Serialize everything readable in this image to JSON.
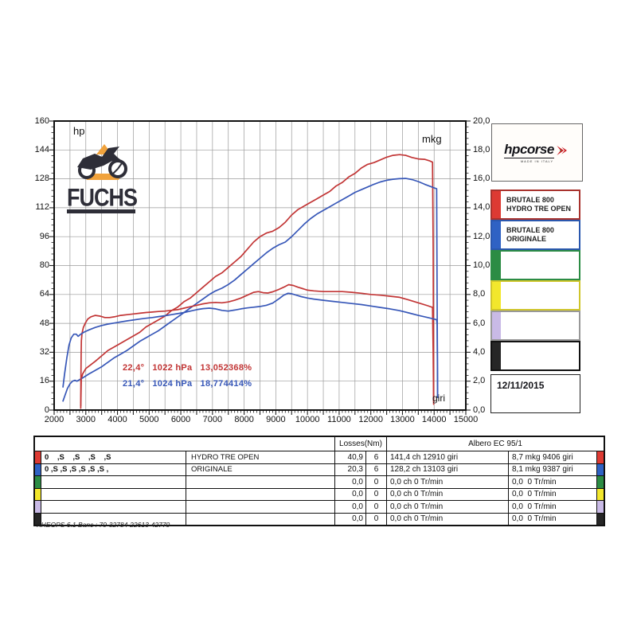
{
  "page": {
    "footer": "KHEOPS 6.1  Banc : 70-32784-22613-42770"
  },
  "logos": {
    "fuchs": {
      "text": "FUCHS"
    },
    "hpcorse": {
      "text": "hpcorse",
      "subtext": "MADE IN ITALY"
    }
  },
  "right_panel": {
    "date": "12/11/2015",
    "legend": [
      {
        "line1": "BRUTALE 800",
        "line2": "HYDRO TRE OPEN",
        "color": "#dd3a33",
        "border": "#a8322d"
      },
      {
        "line1": "BRUTALE 800",
        "line2": "ORIGINALE",
        "color": "#2f62c4",
        "border": "#2a57ae"
      },
      {
        "line1": "",
        "line2": "",
        "color": "#2c8c44",
        "border": "#2c8c44"
      },
      {
        "line1": "",
        "line2": "",
        "color": "#f2e72c",
        "border": "#cfc52b"
      },
      {
        "line1": "",
        "line2": "",
        "color": "#c9bae6",
        "border": "#989898"
      },
      {
        "line1": "",
        "line2": "",
        "color": "#262626",
        "border": "#111111"
      }
    ]
  },
  "chart_data": {
    "type": "line",
    "title": "",
    "x_axis": {
      "label": "giri",
      "min": 2000,
      "max": 15000,
      "grid_step": 500,
      "minor_step": 100,
      "tick_labels": [
        "2000",
        "3000",
        "4000",
        "5000",
        "6000",
        "7000",
        "8000",
        "9000",
        "10000",
        "11000",
        "12000",
        "13000",
        "14000",
        "15000"
      ]
    },
    "y_left": {
      "label": "hp",
      "min": 0,
      "max": 160,
      "grid_step": 16,
      "minor_step": 3.2,
      "tick_labels": [
        "0",
        "16",
        "32",
        "48",
        "64",
        "80",
        "96",
        "112",
        "128",
        "144",
        "160"
      ]
    },
    "y_right": {
      "label": "mkg",
      "min": 0,
      "max": 20,
      "grid_step": 2,
      "minor_step": 0.4,
      "tick_labels": [
        "0,0",
        "2,0",
        "4,0",
        "6,0",
        "8,0",
        "10,0",
        "12,0",
        "14,0",
        "16,0",
        "18,0",
        "20,0"
      ]
    },
    "annotations": [
      {
        "color": "#c23535",
        "text": "22,4°   1022 hPa   13,052368%"
      },
      {
        "color": "#3757b8",
        "text": "21,4°   1024 hPa   18,774414%"
      }
    ],
    "series": [
      {
        "name": "hydro-tre-open-power",
        "unit": "hp",
        "axis": "left",
        "color": "#c23535",
        "peak": "141,4 ch 12910 giri",
        "points": [
          [
            2840,
            1
          ],
          [
            2850,
            10
          ],
          [
            2858,
            17
          ],
          [
            2900,
            20
          ],
          [
            3000,
            23
          ],
          [
            3150,
            25
          ],
          [
            3300,
            27
          ],
          [
            3500,
            30
          ],
          [
            3700,
            33
          ],
          [
            3900,
            35
          ],
          [
            4100,
            37
          ],
          [
            4300,
            39
          ],
          [
            4500,
            41
          ],
          [
            4700,
            43
          ],
          [
            4900,
            46
          ],
          [
            5100,
            48
          ],
          [
            5300,
            50
          ],
          [
            5500,
            52
          ],
          [
            5700,
            55
          ],
          [
            5900,
            57
          ],
          [
            6100,
            60
          ],
          [
            6300,
            62
          ],
          [
            6500,
            65
          ],
          [
            6700,
            68
          ],
          [
            6900,
            71
          ],
          [
            7100,
            74
          ],
          [
            7300,
            76
          ],
          [
            7500,
            79
          ],
          [
            7700,
            82
          ],
          [
            7900,
            85
          ],
          [
            8100,
            89
          ],
          [
            8300,
            93
          ],
          [
            8500,
            96
          ],
          [
            8700,
            98
          ],
          [
            8900,
            99
          ],
          [
            9100,
            101
          ],
          [
            9300,
            104
          ],
          [
            9500,
            108
          ],
          [
            9700,
            111
          ],
          [
            9900,
            113
          ],
          [
            10100,
            115
          ],
          [
            10300,
            117
          ],
          [
            10500,
            119
          ],
          [
            10700,
            121
          ],
          [
            10900,
            124
          ],
          [
            11100,
            126
          ],
          [
            11300,
            129
          ],
          [
            11500,
            131
          ],
          [
            11700,
            134
          ],
          [
            11900,
            136
          ],
          [
            12100,
            137
          ],
          [
            12300,
            138.5
          ],
          [
            12500,
            140
          ],
          [
            12700,
            141
          ],
          [
            12910,
            141.4
          ],
          [
            13100,
            141
          ],
          [
            13300,
            139.8
          ],
          [
            13500,
            139
          ],
          [
            13700,
            138.8
          ],
          [
            13850,
            138
          ],
          [
            13950,
            137.2
          ],
          [
            13970,
            90
          ],
          [
            13985,
            5
          ]
        ]
      },
      {
        "name": "originale-power",
        "unit": "hp",
        "axis": "left",
        "color": "#3757b8",
        "peak": "128,2 ch 13103 giri",
        "points": [
          [
            2280,
            5
          ],
          [
            2340,
            8
          ],
          [
            2420,
            12
          ],
          [
            2500,
            14.5
          ],
          [
            2580,
            16
          ],
          [
            2660,
            16.5
          ],
          [
            2720,
            16
          ],
          [
            2800,
            16.8
          ],
          [
            2900,
            17.8
          ],
          [
            3100,
            20
          ],
          [
            3300,
            22
          ],
          [
            3500,
            24
          ],
          [
            3700,
            26.5
          ],
          [
            3900,
            29
          ],
          [
            4100,
            31
          ],
          [
            4300,
            33
          ],
          [
            4500,
            35.5
          ],
          [
            4700,
            38
          ],
          [
            4900,
            40
          ],
          [
            5100,
            42
          ],
          [
            5300,
            44
          ],
          [
            5500,
            46.5
          ],
          [
            5700,
            49
          ],
          [
            5900,
            51.5
          ],
          [
            6100,
            54
          ],
          [
            6300,
            56.5
          ],
          [
            6500,
            59
          ],
          [
            6700,
            61.5
          ],
          [
            6900,
            64
          ],
          [
            7100,
            66
          ],
          [
            7300,
            67.5
          ],
          [
            7500,
            69.5
          ],
          [
            7700,
            72
          ],
          [
            7900,
            75
          ],
          [
            8100,
            78
          ],
          [
            8300,
            81
          ],
          [
            8500,
            84
          ],
          [
            8700,
            87
          ],
          [
            8900,
            89.5
          ],
          [
            9100,
            91.5
          ],
          [
            9300,
            93
          ],
          [
            9500,
            96
          ],
          [
            9700,
            99.5
          ],
          [
            9900,
            103
          ],
          [
            10100,
            106
          ],
          [
            10300,
            108.5
          ],
          [
            10500,
            110.5
          ],
          [
            10700,
            112.5
          ],
          [
            10900,
            114.5
          ],
          [
            11100,
            116.5
          ],
          [
            11300,
            118.5
          ],
          [
            11500,
            120.5
          ],
          [
            11700,
            122
          ],
          [
            11900,
            123.5
          ],
          [
            12100,
            125
          ],
          [
            12300,
            126.3
          ],
          [
            12500,
            127.2
          ],
          [
            12700,
            127.8
          ],
          [
            12900,
            128.1
          ],
          [
            13103,
            128.2
          ],
          [
            13300,
            127.6
          ],
          [
            13500,
            126.5
          ],
          [
            13700,
            125
          ],
          [
            13850,
            124
          ],
          [
            14000,
            123
          ],
          [
            14080,
            122.5
          ],
          [
            14095,
            60
          ],
          [
            14110,
            7
          ]
        ]
      },
      {
        "name": "hydro-tre-open-torque",
        "unit": "mkg",
        "axis": "right",
        "color": "#c23535",
        "peak": "8,7 mkg 9406 giri",
        "points": [
          [
            2840,
            0.3
          ],
          [
            2846,
            2.0
          ],
          [
            2852,
            3.8
          ],
          [
            2860,
            4.8
          ],
          [
            2880,
            5.3
          ],
          [
            2920,
            5.7
          ],
          [
            2980,
            6.0
          ],
          [
            3060,
            6.3
          ],
          [
            3160,
            6.45
          ],
          [
            3300,
            6.55
          ],
          [
            3450,
            6.5
          ],
          [
            3600,
            6.4
          ],
          [
            3750,
            6.4
          ],
          [
            3900,
            6.45
          ],
          [
            4100,
            6.55
          ],
          [
            4300,
            6.6
          ],
          [
            4500,
            6.65
          ],
          [
            4700,
            6.7
          ],
          [
            4900,
            6.75
          ],
          [
            5100,
            6.78
          ],
          [
            5300,
            6.82
          ],
          [
            5500,
            6.85
          ],
          [
            5700,
            6.9
          ],
          [
            5900,
            6.95
          ],
          [
            6100,
            7.05
          ],
          [
            6300,
            7.15
          ],
          [
            6500,
            7.25
          ],
          [
            6700,
            7.35
          ],
          [
            6900,
            7.42
          ],
          [
            7100,
            7.45
          ],
          [
            7300,
            7.42
          ],
          [
            7500,
            7.48
          ],
          [
            7700,
            7.6
          ],
          [
            7900,
            7.75
          ],
          [
            8100,
            7.95
          ],
          [
            8300,
            8.15
          ],
          [
            8450,
            8.2
          ],
          [
            8600,
            8.12
          ],
          [
            8750,
            8.1
          ],
          [
            8900,
            8.18
          ],
          [
            9100,
            8.35
          ],
          [
            9250,
            8.5
          ],
          [
            9406,
            8.68
          ],
          [
            9550,
            8.62
          ],
          [
            9700,
            8.5
          ],
          [
            9850,
            8.4
          ],
          [
            10000,
            8.3
          ],
          [
            10200,
            8.25
          ],
          [
            10500,
            8.2
          ],
          [
            10800,
            8.2
          ],
          [
            11100,
            8.2
          ],
          [
            11400,
            8.15
          ],
          [
            11700,
            8.08
          ],
          [
            12000,
            8.0
          ],
          [
            12300,
            7.95
          ],
          [
            12600,
            7.88
          ],
          [
            12910,
            7.8
          ],
          [
            13200,
            7.62
          ],
          [
            13500,
            7.42
          ],
          [
            13800,
            7.22
          ],
          [
            13950,
            7.1
          ],
          [
            13970,
            4
          ],
          [
            13985,
            0.4
          ]
        ]
      },
      {
        "name": "originale-torque",
        "unit": "mkg",
        "axis": "right",
        "color": "#3757b8",
        "peak": "8,1 mkg 9387 giri",
        "points": [
          [
            2280,
            1.6
          ],
          [
            2330,
            2.5
          ],
          [
            2400,
            3.6
          ],
          [
            2470,
            4.5
          ],
          [
            2540,
            5.0
          ],
          [
            2620,
            5.25
          ],
          [
            2700,
            5.25
          ],
          [
            2760,
            5.1
          ],
          [
            2840,
            5.25
          ],
          [
            2950,
            5.4
          ],
          [
            3100,
            5.55
          ],
          [
            3300,
            5.72
          ],
          [
            3500,
            5.85
          ],
          [
            3700,
            5.95
          ],
          [
            3900,
            6.02
          ],
          [
            4100,
            6.1
          ],
          [
            4300,
            6.17
          ],
          [
            4500,
            6.23
          ],
          [
            4700,
            6.3
          ],
          [
            4900,
            6.35
          ],
          [
            5100,
            6.4
          ],
          [
            5300,
            6.47
          ],
          [
            5500,
            6.53
          ],
          [
            5700,
            6.6
          ],
          [
            5900,
            6.67
          ],
          [
            6100,
            6.75
          ],
          [
            6300,
            6.85
          ],
          [
            6500,
            6.95
          ],
          [
            6700,
            7.02
          ],
          [
            6900,
            7.05
          ],
          [
            7100,
            7.0
          ],
          [
            7300,
            6.9
          ],
          [
            7500,
            6.85
          ],
          [
            7700,
            6.92
          ],
          [
            7900,
            7.0
          ],
          [
            8100,
            7.07
          ],
          [
            8300,
            7.12
          ],
          [
            8500,
            7.17
          ],
          [
            8700,
            7.25
          ],
          [
            8900,
            7.4
          ],
          [
            9100,
            7.7
          ],
          [
            9250,
            7.95
          ],
          [
            9387,
            8.08
          ],
          [
            9500,
            8.05
          ],
          [
            9650,
            7.95
          ],
          [
            9800,
            7.85
          ],
          [
            10000,
            7.75
          ],
          [
            10200,
            7.68
          ],
          [
            10500,
            7.6
          ],
          [
            10800,
            7.52
          ],
          [
            11100,
            7.45
          ],
          [
            11400,
            7.37
          ],
          [
            11700,
            7.3
          ],
          [
            12000,
            7.2
          ],
          [
            12300,
            7.1
          ],
          [
            12600,
            7.0
          ],
          [
            12900,
            6.88
          ],
          [
            13200,
            6.72
          ],
          [
            13500,
            6.55
          ],
          [
            13800,
            6.4
          ],
          [
            14000,
            6.3
          ],
          [
            14080,
            6.25
          ],
          [
            14095,
            5.9
          ],
          [
            14110,
            1.0
          ]
        ]
      }
    ]
  },
  "results_table": {
    "header": {
      "empty": "",
      "losses": "Losses(Nm)",
      "albero": "Albero EC 95/1"
    },
    "rows": [
      {
        "stripe": "#dd3a33",
        "gears": "0    ,S    ,S    ,S    ,S",
        "name": "HYDRO TRE OPEN",
        "loss": "40,9",
        "count": "6",
        "power": "141,4 ch 12910 giri",
        "torque": "8,7 mkg 9406 giri"
      },
      {
        "stripe": "#2f62c4",
        "gears": "0 ,S ,S ,S ,S ,S ,S ,",
        "name": "ORIGINALE",
        "loss": "20,3",
        "count": "6",
        "power": "128,2 ch 13103 giri",
        "torque": "8,1 mkg 9387 giri"
      },
      {
        "stripe": "#2c8c44",
        "gears": "",
        "name": "",
        "loss": "0,0",
        "count": "0",
        "power": "0,0 ch 0 Tr/min",
        "torque": "0,0  0 Tr/min"
      },
      {
        "stripe": "#f2e72c",
        "gears": "",
        "name": "",
        "loss": "0,0",
        "count": "0",
        "power": "0,0 ch 0 Tr/min",
        "torque": "0,0  0 Tr/min"
      },
      {
        "stripe": "#c9bae6",
        "gears": "",
        "name": "",
        "loss": "0,0",
        "count": "0",
        "power": "0,0 ch 0 Tr/min",
        "torque": "0,0  0 Tr/min"
      },
      {
        "stripe": "#262626",
        "gears": "",
        "name": "",
        "loss": "0,0",
        "count": "0",
        "power": "0,0 ch 0 Tr/min",
        "torque": "0,0  0 Tr/min"
      }
    ]
  }
}
